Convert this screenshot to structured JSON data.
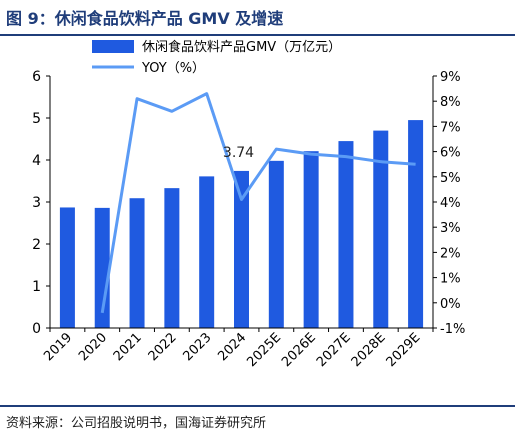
{
  "figure": {
    "title": "图 9：休闲食品饮料产品 GMV 及增速",
    "source": "资料来源：公司招股说明书，国海证券研究所"
  },
  "colors": {
    "bar": "#1f5ae0",
    "line": "#5b9bf5",
    "header_rule": "#1f3d7a",
    "axis": "#000000"
  },
  "chart_data": {
    "type": "bar",
    "categories": [
      "2019",
      "2020",
      "2021",
      "2022",
      "2023",
      "2024",
      "2025E",
      "2026E",
      "2027E",
      "2028E",
      "2029E"
    ],
    "series": [
      {
        "name": "休闲食品饮料产品GMV（万亿元）",
        "type": "bar",
        "axis": "left",
        "values": [
          2.87,
          2.86,
          3.09,
          3.33,
          3.61,
          3.74,
          3.98,
          4.21,
          4.45,
          4.7,
          4.95
        ]
      },
      {
        "name": "YOY（%）",
        "type": "line",
        "axis": "right",
        "values": [
          null,
          -0.4,
          8.1,
          7.6,
          8.3,
          4.1,
          6.1,
          5.9,
          5.8,
          5.6,
          5.5
        ]
      }
    ],
    "annotations": [
      {
        "category": "2024",
        "text": "3.74"
      }
    ],
    "y_left": {
      "lim": [
        0,
        6
      ],
      "ticks": [
        "0",
        "1",
        "2",
        "3",
        "4",
        "5",
        "6"
      ]
    },
    "y_right": {
      "lim": [
        -1,
        9
      ],
      "ticks": [
        "-1%",
        "0%",
        "1%",
        "2%",
        "3%",
        "4%",
        "5%",
        "6%",
        "7%",
        "8%",
        "9%"
      ]
    },
    "legend_position": "top-left",
    "grid": false
  }
}
